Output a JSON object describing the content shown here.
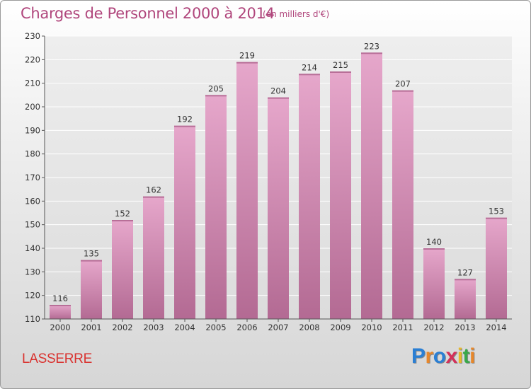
{
  "header": {
    "title": "Charges de Personnel 2000 à 2014",
    "subtitle": "(en milliers d'€)"
  },
  "footer": {
    "town": "LASSERRE",
    "logo_text": "Proxiti",
    "logo_colors": [
      "#2a7fd4",
      "#e8872a",
      "#2a7fd4",
      "#d4305a",
      "#e8b82a",
      "#39a84a",
      "#e8872a"
    ]
  },
  "colors": {
    "bar_top": "#e6a7cb",
    "bar_bottom": "#b36a93",
    "title": "#b0467c",
    "town": "#d9322f",
    "grid": "#ffffff",
    "axis": "#555555"
  },
  "chart_data": {
    "type": "bar",
    "title": "Charges de Personnel 2000 à 2014",
    "subtitle": "(en milliers d'€)",
    "categories": [
      "2000",
      "2001",
      "2002",
      "2003",
      "2004",
      "2005",
      "2006",
      "2007",
      "2008",
      "2009",
      "2010",
      "2011",
      "2012",
      "2013",
      "2014"
    ],
    "values": [
      116,
      135,
      152,
      162,
      192,
      205,
      219,
      204,
      214,
      215,
      223,
      207,
      140,
      127,
      153
    ],
    "ylim": [
      110,
      230
    ],
    "yticks": [
      110,
      120,
      130,
      140,
      150,
      160,
      170,
      180,
      190,
      200,
      210,
      220,
      230
    ],
    "grid": true,
    "legend": "none",
    "data_labels": true
  }
}
